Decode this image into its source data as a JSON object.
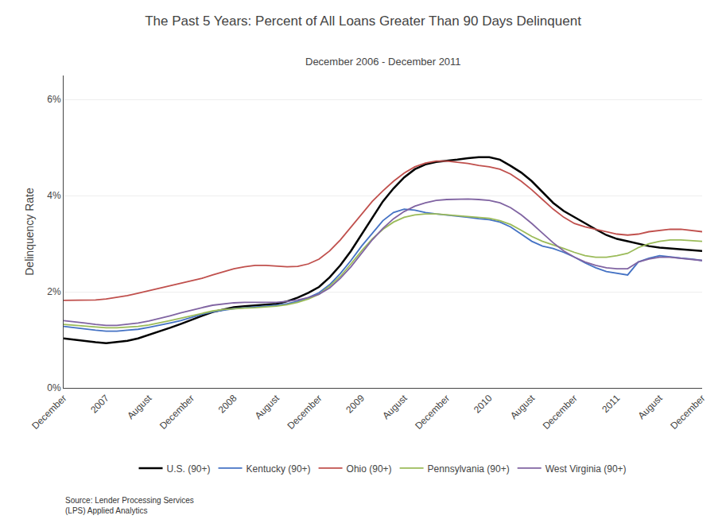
{
  "chart_data": {
    "type": "line",
    "title": "The Past 5 Years: Percent of All Loans Greater Than 90 Days Delinquent",
    "subtitle": "December 2006 - December 2011",
    "ylabel": "Delinquency Rate",
    "source": "Source: Lender Processing Services\n(LPS) Applied Analytics",
    "categories": [
      "December",
      null,
      null,
      null,
      "2007",
      null,
      null,
      null,
      "August",
      null,
      null,
      null,
      "December",
      null,
      null,
      null,
      "2008",
      null,
      null,
      null,
      "August",
      null,
      null,
      null,
      "December",
      null,
      null,
      null,
      "2009",
      null,
      null,
      null,
      "August",
      null,
      null,
      null,
      "December",
      null,
      null,
      null,
      "2010",
      null,
      null,
      null,
      "August",
      null,
      null,
      null,
      "December",
      null,
      null,
      null,
      "2011",
      null,
      null,
      null,
      "August",
      null,
      null,
      null,
      "December"
    ],
    "series": [
      {
        "name": "U.S. (90+)",
        "color": "#000000",
        "values": [
          0.0103,
          0.01,
          0.0097,
          0.0095,
          0.0093,
          0.0095,
          0.0098,
          0.0103,
          0.011,
          0.0118,
          0.0125,
          0.0133,
          0.0142,
          0.015,
          0.0158,
          0.0163,
          0.0168,
          0.017,
          0.0172,
          0.0173,
          0.0175,
          0.018,
          0.0188,
          0.0198,
          0.021,
          0.023,
          0.0255,
          0.0285,
          0.032,
          0.0355,
          0.0388,
          0.0415,
          0.0438,
          0.0455,
          0.0465,
          0.047,
          0.0472,
          0.0475,
          0.0478,
          0.048,
          0.048,
          0.0475,
          0.0462,
          0.0448,
          0.043,
          0.0408,
          0.0385,
          0.0368,
          0.0355,
          0.0342,
          0.033,
          0.0318,
          0.031,
          0.0305,
          0.03,
          0.0295,
          0.0292,
          0.029,
          0.0288,
          0.0286,
          0.0285
        ]
      },
      {
        "name": "Kentucky (90+)",
        "color": "#4472C4",
        "values": [
          0.0128,
          0.0125,
          0.0122,
          0.012,
          0.0118,
          0.0118,
          0.012,
          0.0122,
          0.0126,
          0.013,
          0.0135,
          0.014,
          0.0147,
          0.0153,
          0.0158,
          0.0162,
          0.0165,
          0.0167,
          0.0168,
          0.017,
          0.0172,
          0.0175,
          0.018,
          0.0188,
          0.0198,
          0.0215,
          0.0238,
          0.0265,
          0.0295,
          0.0322,
          0.0348,
          0.0365,
          0.0372,
          0.037,
          0.0365,
          0.0362,
          0.036,
          0.0358,
          0.0355,
          0.0352,
          0.035,
          0.0345,
          0.0335,
          0.032,
          0.0305,
          0.0295,
          0.029,
          0.0282,
          0.0272,
          0.026,
          0.025,
          0.0242,
          0.0238,
          0.0235,
          0.0262,
          0.027,
          0.0275,
          0.0272,
          0.027,
          0.0268,
          0.0265
        ]
      },
      {
        "name": "Ohio (90+)",
        "color": "#C0504D",
        "values": [
          0.0182,
          0.0182,
          0.0183,
          0.0183,
          0.0185,
          0.0188,
          0.0192,
          0.0197,
          0.0202,
          0.0207,
          0.0212,
          0.0217,
          0.0222,
          0.0228,
          0.0235,
          0.0242,
          0.0248,
          0.0252,
          0.0255,
          0.0255,
          0.0253,
          0.0252,
          0.0253,
          0.0258,
          0.0268,
          0.0285,
          0.0308,
          0.0335,
          0.0362,
          0.0388,
          0.041,
          0.043,
          0.0447,
          0.046,
          0.0468,
          0.0472,
          0.0472,
          0.047,
          0.0467,
          0.0463,
          0.046,
          0.0455,
          0.0445,
          0.043,
          0.0412,
          0.0392,
          0.0372,
          0.0355,
          0.0342,
          0.0335,
          0.033,
          0.0325,
          0.032,
          0.0318,
          0.032,
          0.0325,
          0.0328,
          0.033,
          0.033,
          0.0328,
          0.0325
        ]
      },
      {
        "name": "Pennsylvania (90+)",
        "color": "#9BBB59",
        "values": [
          0.0132,
          0.013,
          0.0128,
          0.0126,
          0.0125,
          0.0125,
          0.0126,
          0.0128,
          0.0131,
          0.0135,
          0.014,
          0.0145,
          0.015,
          0.0155,
          0.016,
          0.0163,
          0.0165,
          0.0166,
          0.0167,
          0.0168,
          0.017,
          0.0173,
          0.0178,
          0.0185,
          0.0195,
          0.0212,
          0.0232,
          0.0258,
          0.0285,
          0.031,
          0.033,
          0.0345,
          0.0355,
          0.036,
          0.0362,
          0.0362,
          0.036,
          0.0358,
          0.0356,
          0.0355,
          0.0353,
          0.0348,
          0.034,
          0.0328,
          0.0315,
          0.0305,
          0.0298,
          0.029,
          0.0282,
          0.0275,
          0.0272,
          0.0272,
          0.0275,
          0.028,
          0.0292,
          0.03,
          0.0305,
          0.0308,
          0.0308,
          0.0307,
          0.0305
        ]
      },
      {
        "name": "West Virginia (90+)",
        "color": "#8064A2",
        "values": [
          0.014,
          0.0138,
          0.0135,
          0.0132,
          0.013,
          0.013,
          0.0132,
          0.0135,
          0.0139,
          0.0144,
          0.015,
          0.0156,
          0.0162,
          0.0167,
          0.0172,
          0.0175,
          0.0177,
          0.0178,
          0.0178,
          0.0178,
          0.0178,
          0.018,
          0.0183,
          0.0188,
          0.0195,
          0.0208,
          0.0228,
          0.0252,
          0.028,
          0.0308,
          0.0332,
          0.0352,
          0.0367,
          0.0378,
          0.0385,
          0.039,
          0.0392,
          0.0393,
          0.0393,
          0.0392,
          0.039,
          0.0385,
          0.0375,
          0.036,
          0.0342,
          0.0322,
          0.0302,
          0.0285,
          0.0272,
          0.0262,
          0.0255,
          0.025,
          0.0248,
          0.0248,
          0.0262,
          0.0268,
          0.0272,
          0.0272,
          0.027,
          0.0268,
          0.0265
        ]
      }
    ],
    "ylim": [
      0,
      0.065
    ],
    "yticks": [
      {
        "value": 0.0,
        "label": "0%"
      },
      {
        "value": 0.02,
        "label": "2%"
      },
      {
        "value": 0.04,
        "label": "4%"
      },
      {
        "value": 0.06,
        "label": "6%"
      }
    ],
    "grid": true,
    "legend": "bottom"
  }
}
